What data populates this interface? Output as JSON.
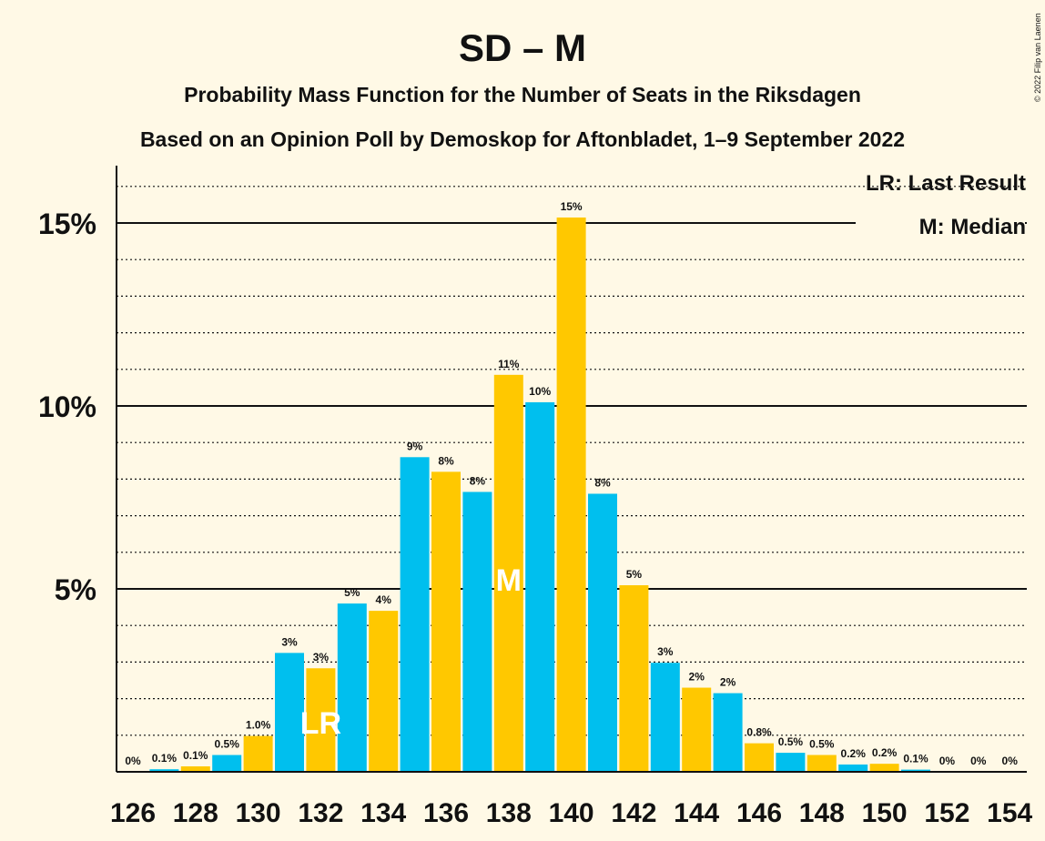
{
  "chart_data": {
    "type": "bar",
    "title": "SD – M",
    "subtitle_1": "Probability Mass Function for the Number of Seats in the Riksdagen",
    "subtitle_2": "Based on an Opinion Poll by Demoskop for Aftonbladet, 1–9 September 2022",
    "copyright": "© 2022 Filip van Laenen",
    "legend": {
      "placement": "top-right",
      "last_result": "LR: Last Result",
      "median": "M: Median"
    },
    "x": [
      126,
      127,
      128,
      129,
      130,
      131,
      132,
      133,
      134,
      135,
      136,
      137,
      138,
      139,
      140,
      141,
      142,
      143,
      144,
      145,
      146,
      147,
      148,
      149,
      150,
      151,
      152,
      153,
      154
    ],
    "values": [
      0,
      0.07,
      0.15,
      0.46,
      0.98,
      3.25,
      2.83,
      4.6,
      4.4,
      8.6,
      8.2,
      7.65,
      10.85,
      10.1,
      15.15,
      7.6,
      5.1,
      2.98,
      2.3,
      2.15,
      0.78,
      0.52,
      0.46,
      0.2,
      0.22,
      0.06,
      0,
      0,
      0
    ],
    "data_labels": [
      "0%",
      "0.1%",
      "0.1%",
      "0.5%",
      "1.0%",
      "3%",
      "3%",
      "5%",
      "4%",
      "9%",
      "8%",
      "8%",
      "11%",
      "10%",
      "15%",
      "8%",
      "5%",
      "3%",
      "2%",
      "2%",
      "0.8%",
      "0.5%",
      "0.5%",
      "0.2%",
      "0.2%",
      "0.1%",
      "0%",
      "0%",
      "0%"
    ],
    "x_tick_labels": [
      "126",
      "128",
      "130",
      "132",
      "134",
      "136",
      "138",
      "140",
      "142",
      "144",
      "146",
      "148",
      "150",
      "152",
      "154"
    ],
    "y_ticks": [
      5,
      10,
      15
    ],
    "y_tick_labels": [
      "5%",
      "10%",
      "15%"
    ],
    "ylim": [
      0,
      16.5
    ],
    "grid": "dotted at every 1%, solid at 5%",
    "last_result_seat": 132,
    "last_result_marker": "LR",
    "median_seat": 138,
    "median_marker": "M",
    "colors": {
      "background": "#FFF9E6",
      "bar_even": "#FFC800",
      "bar_odd": "#00BFEE",
      "marker_text": "#FFFFFF",
      "axis": "#111111"
    }
  }
}
